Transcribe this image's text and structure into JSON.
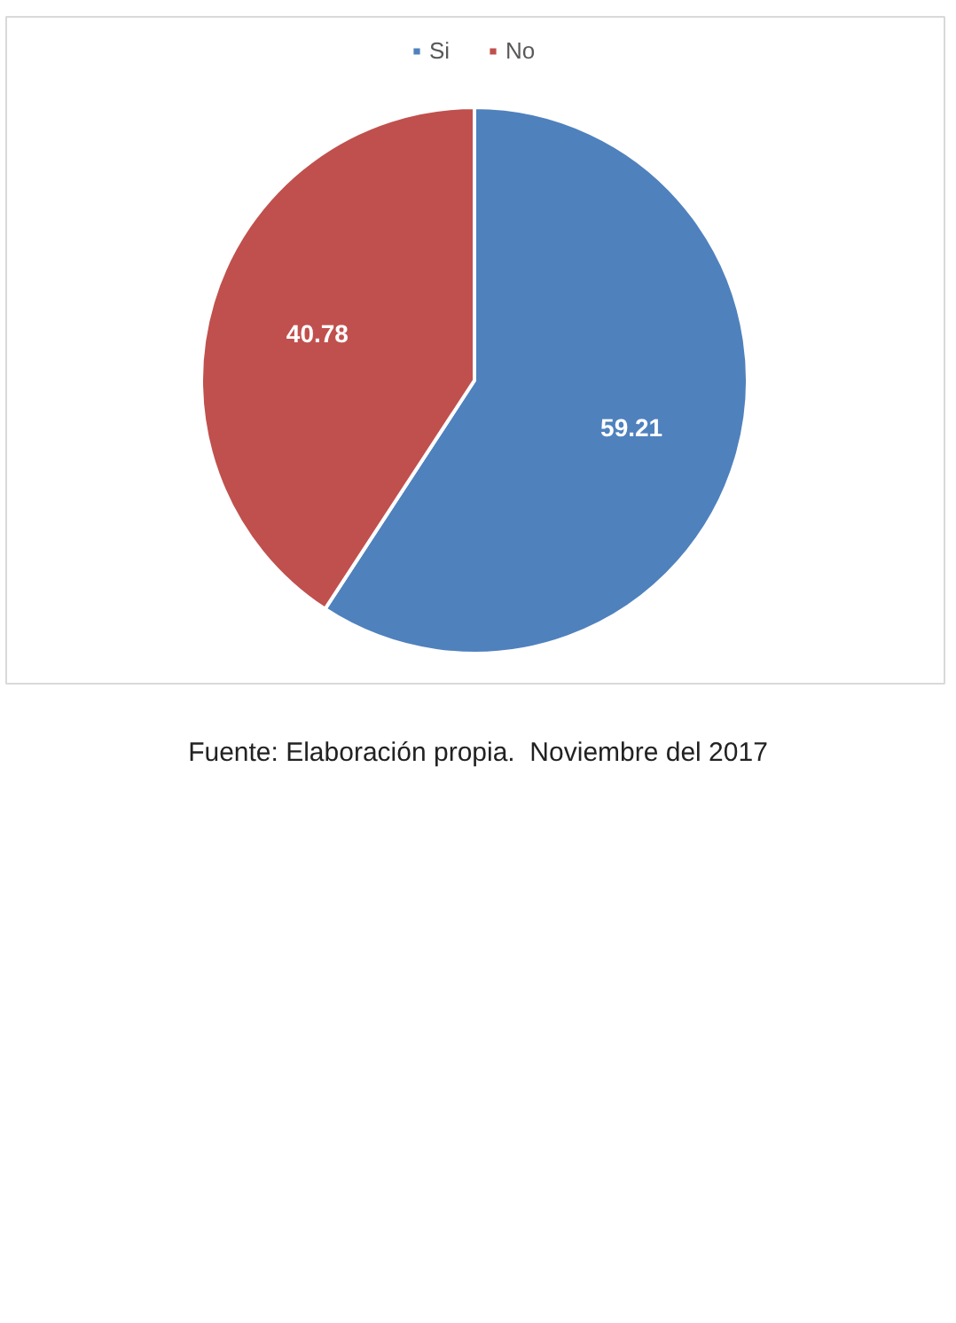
{
  "chart_data": {
    "type": "pie",
    "categories": [
      "Si",
      "No"
    ],
    "values": [
      59.21,
      40.78
    ],
    "colors": [
      "#4f81bd",
      "#c0504d"
    ],
    "data_labels": true,
    "legend": "top",
    "annotations": [
      "Fuente: Elaboración propia.  Noviembre del 2017"
    ]
  }
}
